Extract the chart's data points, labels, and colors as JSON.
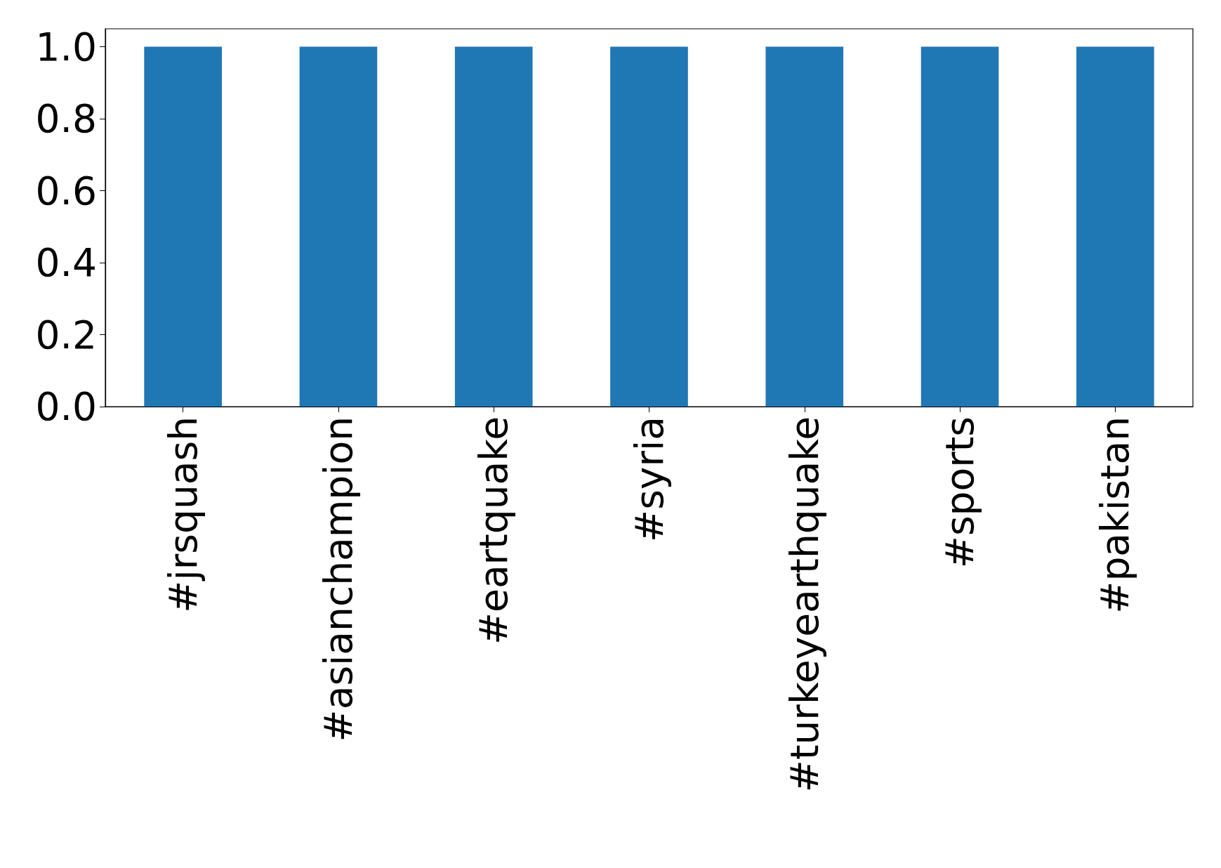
{
  "chart_data": {
    "type": "bar",
    "categories": [
      "#jrsquash",
      "#asianchampion",
      "#eartquake",
      "#syria",
      "#turkeyearthquake",
      "#sports",
      "#pakistan"
    ],
    "values": [
      1,
      1,
      1,
      1,
      1,
      1,
      1
    ],
    "color": "#1f77b4",
    "ylim": [
      0,
      1.05
    ],
    "yticks": [
      {
        "value": 0,
        "label": "0.0"
      },
      {
        "value": 0.2,
        "label": "0.2"
      },
      {
        "value": 0.4,
        "label": "0.4"
      },
      {
        "value": 0.6,
        "label": "0.6"
      },
      {
        "value": 0.8,
        "label": "0.8"
      },
      {
        "value": 1,
        "label": "1.0"
      }
    ],
    "grid": false
  }
}
